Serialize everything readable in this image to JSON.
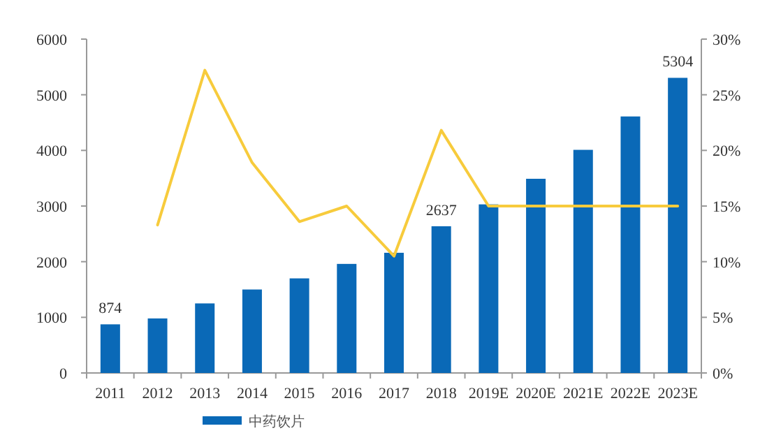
{
  "chart_data": {
    "type": "bar",
    "categories": [
      "2011",
      "2012",
      "2013",
      "2014",
      "2015",
      "2016",
      "2017",
      "2018",
      "2019E",
      "2020E",
      "2021E",
      "2022E",
      "2023E"
    ],
    "series": [
      {
        "name": "中药饮片",
        "color": "#0a69b7",
        "values": [
          874,
          980,
          1250,
          1500,
          1700,
          1960,
          2160,
          2637,
          3030,
          3490,
          4010,
          4610,
          5304
        ],
        "value_labels": [
          "874",
          null,
          null,
          null,
          null,
          null,
          null,
          "2637",
          null,
          null,
          null,
          null,
          "5304"
        ]
      },
      {
        "type": "line",
        "axis": "y2",
        "color": "#f7cb3c",
        "values": [
          null,
          13.3,
          27.2,
          18.9,
          13.6,
          15.0,
          10.5,
          21.8,
          15,
          15,
          15,
          15,
          15
        ]
      }
    ],
    "ylim": [
      0,
      6000
    ],
    "yticks": [
      0,
      1000,
      2000,
      3000,
      4000,
      5000,
      6000
    ],
    "y2lim": [
      0,
      30
    ],
    "y2ticks": [
      {
        "value": 0,
        "label": "0%"
      },
      {
        "value": 5,
        "label": "5%"
      },
      {
        "value": 10,
        "label": "10%"
      },
      {
        "value": 15,
        "label": "15%"
      },
      {
        "value": 20,
        "label": "20%"
      },
      {
        "value": 25,
        "label": "25%"
      },
      {
        "value": 30,
        "label": "30%"
      }
    ],
    "legend": "bottom",
    "marker": "none",
    "line_style": "solid",
    "grid": false
  }
}
